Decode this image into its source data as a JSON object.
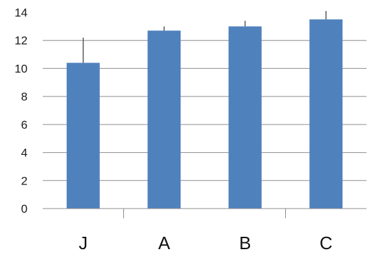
{
  "chart_data": {
    "type": "bar",
    "categories": [
      "J",
      "A",
      "B",
      "C"
    ],
    "values": [
      10.4,
      12.7,
      13.0,
      13.5
    ],
    "error_bars": [
      1.8,
      0.3,
      0.4,
      0.6
    ],
    "title": "",
    "xlabel": "",
    "ylabel": "",
    "ylim": [
      0,
      14
    ],
    "y_ticks": [
      "0",
      "2",
      "4",
      "6",
      "8",
      "10",
      "12",
      "14"
    ],
    "grid": true,
    "legend": "none",
    "colors": {
      "bar": "#4f81bd",
      "grid": "#8c8c8c",
      "axis": "#8c8c8c",
      "error_bar": "#595959"
    }
  }
}
